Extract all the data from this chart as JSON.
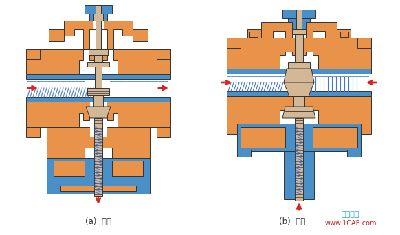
{
  "background_color": "#ffffff",
  "orange_color": "#E8924A",
  "blue_color": "#4A90C8",
  "tan_color": "#D4B896",
  "red_color": "#DD2222",
  "outline_color": "#333333",
  "blue_hatch_color": "#4477CC",
  "label_a": "(a)  分流",
  "label_b": "(b)  合流",
  "watermark_cn": "仿真在线",
  "watermark_en": "www.1CAE.com",
  "wm_color_cn": "#22AADD",
  "wm_color_en": "#CC2222",
  "fig_width": 5.82,
  "fig_height": 3.42,
  "dpi": 100
}
